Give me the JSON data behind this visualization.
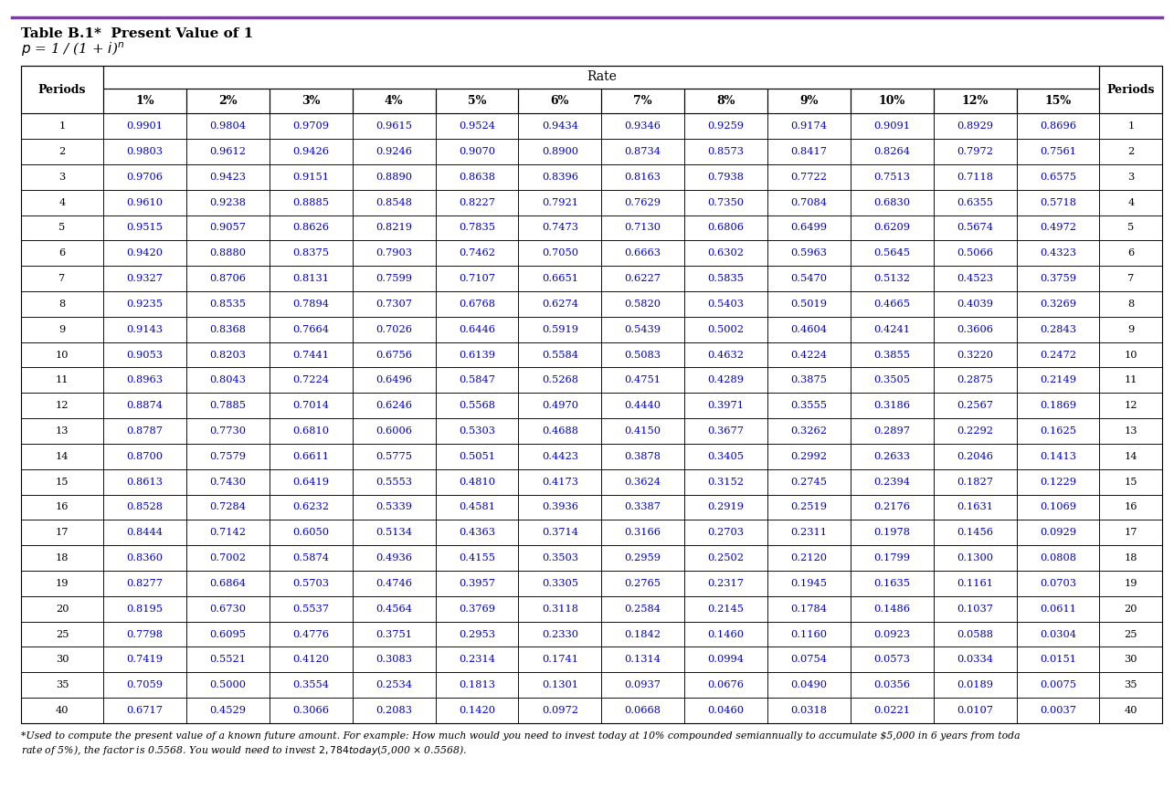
{
  "title_line1": "Table B.1*  Present Value of 1",
  "title_formula": "p = 1 / (1 + i)ⁿ",
  "top_line_color": "#7B3FA0",
  "header_rate": "Rate",
  "col_headers": [
    "Periods",
    "1%",
    "2%",
    "3%",
    "4%",
    "5%",
    "6%",
    "7%",
    "8%",
    "9%",
    "10%",
    "12%",
    "15%",
    "Periods"
  ],
  "periods": [
    1,
    2,
    3,
    4,
    5,
    6,
    7,
    8,
    9,
    10,
    11,
    12,
    13,
    14,
    15,
    16,
    17,
    18,
    19,
    20,
    25,
    30,
    35,
    40
  ],
  "data": [
    [
      0.9901,
      0.9804,
      0.9709,
      0.9615,
      0.9524,
      0.9434,
      0.9346,
      0.9259,
      0.9174,
      0.9091,
      0.8929,
      0.8696
    ],
    [
      0.9803,
      0.9612,
      0.9426,
      0.9246,
      0.907,
      0.89,
      0.8734,
      0.8573,
      0.8417,
      0.8264,
      0.7972,
      0.7561
    ],
    [
      0.9706,
      0.9423,
      0.9151,
      0.889,
      0.8638,
      0.8396,
      0.8163,
      0.7938,
      0.7722,
      0.7513,
      0.7118,
      0.6575
    ],
    [
      0.961,
      0.9238,
      0.8885,
      0.8548,
      0.8227,
      0.7921,
      0.7629,
      0.735,
      0.7084,
      0.683,
      0.6355,
      0.5718
    ],
    [
      0.9515,
      0.9057,
      0.8626,
      0.8219,
      0.7835,
      0.7473,
      0.713,
      0.6806,
      0.6499,
      0.6209,
      0.5674,
      0.4972
    ],
    [
      0.942,
      0.888,
      0.8375,
      0.7903,
      0.7462,
      0.705,
      0.6663,
      0.6302,
      0.5963,
      0.5645,
      0.5066,
      0.4323
    ],
    [
      0.9327,
      0.8706,
      0.8131,
      0.7599,
      0.7107,
      0.6651,
      0.6227,
      0.5835,
      0.547,
      0.5132,
      0.4523,
      0.3759
    ],
    [
      0.9235,
      0.8535,
      0.7894,
      0.7307,
      0.6768,
      0.6274,
      0.582,
      0.5403,
      0.5019,
      0.4665,
      0.4039,
      0.3269
    ],
    [
      0.9143,
      0.8368,
      0.7664,
      0.7026,
      0.6446,
      0.5919,
      0.5439,
      0.5002,
      0.4604,
      0.4241,
      0.3606,
      0.2843
    ],
    [
      0.9053,
      0.8203,
      0.7441,
      0.6756,
      0.6139,
      0.5584,
      0.5083,
      0.4632,
      0.4224,
      0.3855,
      0.322,
      0.2472
    ],
    [
      0.8963,
      0.8043,
      0.7224,
      0.6496,
      0.5847,
      0.5268,
      0.4751,
      0.4289,
      0.3875,
      0.3505,
      0.2875,
      0.2149
    ],
    [
      0.8874,
      0.7885,
      0.7014,
      0.6246,
      0.5568,
      0.497,
      0.444,
      0.3971,
      0.3555,
      0.3186,
      0.2567,
      0.1869
    ],
    [
      0.8787,
      0.773,
      0.681,
      0.6006,
      0.5303,
      0.4688,
      0.415,
      0.3677,
      0.3262,
      0.2897,
      0.2292,
      0.1625
    ],
    [
      0.87,
      0.7579,
      0.6611,
      0.5775,
      0.5051,
      0.4423,
      0.3878,
      0.3405,
      0.2992,
      0.2633,
      0.2046,
      0.1413
    ],
    [
      0.8613,
      0.743,
      0.6419,
      0.5553,
      0.481,
      0.4173,
      0.3624,
      0.3152,
      0.2745,
      0.2394,
      0.1827,
      0.1229
    ],
    [
      0.8528,
      0.7284,
      0.6232,
      0.5339,
      0.4581,
      0.3936,
      0.3387,
      0.2919,
      0.2519,
      0.2176,
      0.1631,
      0.1069
    ],
    [
      0.8444,
      0.7142,
      0.605,
      0.5134,
      0.4363,
      0.3714,
      0.3166,
      0.2703,
      0.2311,
      0.1978,
      0.1456,
      0.0929
    ],
    [
      0.836,
      0.7002,
      0.5874,
      0.4936,
      0.4155,
      0.3503,
      0.2959,
      0.2502,
      0.212,
      0.1799,
      0.13,
      0.0808
    ],
    [
      0.8277,
      0.6864,
      0.5703,
      0.4746,
      0.3957,
      0.3305,
      0.2765,
      0.2317,
      0.1945,
      0.1635,
      0.1161,
      0.0703
    ],
    [
      0.8195,
      0.673,
      0.5537,
      0.4564,
      0.3769,
      0.3118,
      0.2584,
      0.2145,
      0.1784,
      0.1486,
      0.1037,
      0.0611
    ],
    [
      0.7798,
      0.6095,
      0.4776,
      0.3751,
      0.2953,
      0.233,
      0.1842,
      0.146,
      0.116,
      0.0923,
      0.0588,
      0.0304
    ],
    [
      0.7419,
      0.5521,
      0.412,
      0.3083,
      0.2314,
      0.1741,
      0.1314,
      0.0994,
      0.0754,
      0.0573,
      0.0334,
      0.0151
    ],
    [
      0.7059,
      0.5,
      0.3554,
      0.2534,
      0.1813,
      0.1301,
      0.0937,
      0.0676,
      0.049,
      0.0356,
      0.0189,
      0.0075
    ],
    [
      0.6717,
      0.4529,
      0.3066,
      0.2083,
      0.142,
      0.0972,
      0.0668,
      0.046,
      0.0318,
      0.0221,
      0.0107,
      0.0037
    ]
  ],
  "footnote_line1": "*Used to compute the present value of a known future amount. For example: How much would you need to invest today at 10% compounded semiannually to accumulate $5,000 in 6 years from toda",
  "footnote_line2": "rate of 5%), the factor is 0.5568. You would need to invest $2,784 today ($5,000 × 0.5568).",
  "data_color": "#0000cc",
  "period_color": "#000000",
  "header_color": "#000000",
  "bg_color": "#ffffff",
  "border_color": "#000000",
  "fig_width": 12.85,
  "fig_height": 8.75,
  "dpi": 100
}
